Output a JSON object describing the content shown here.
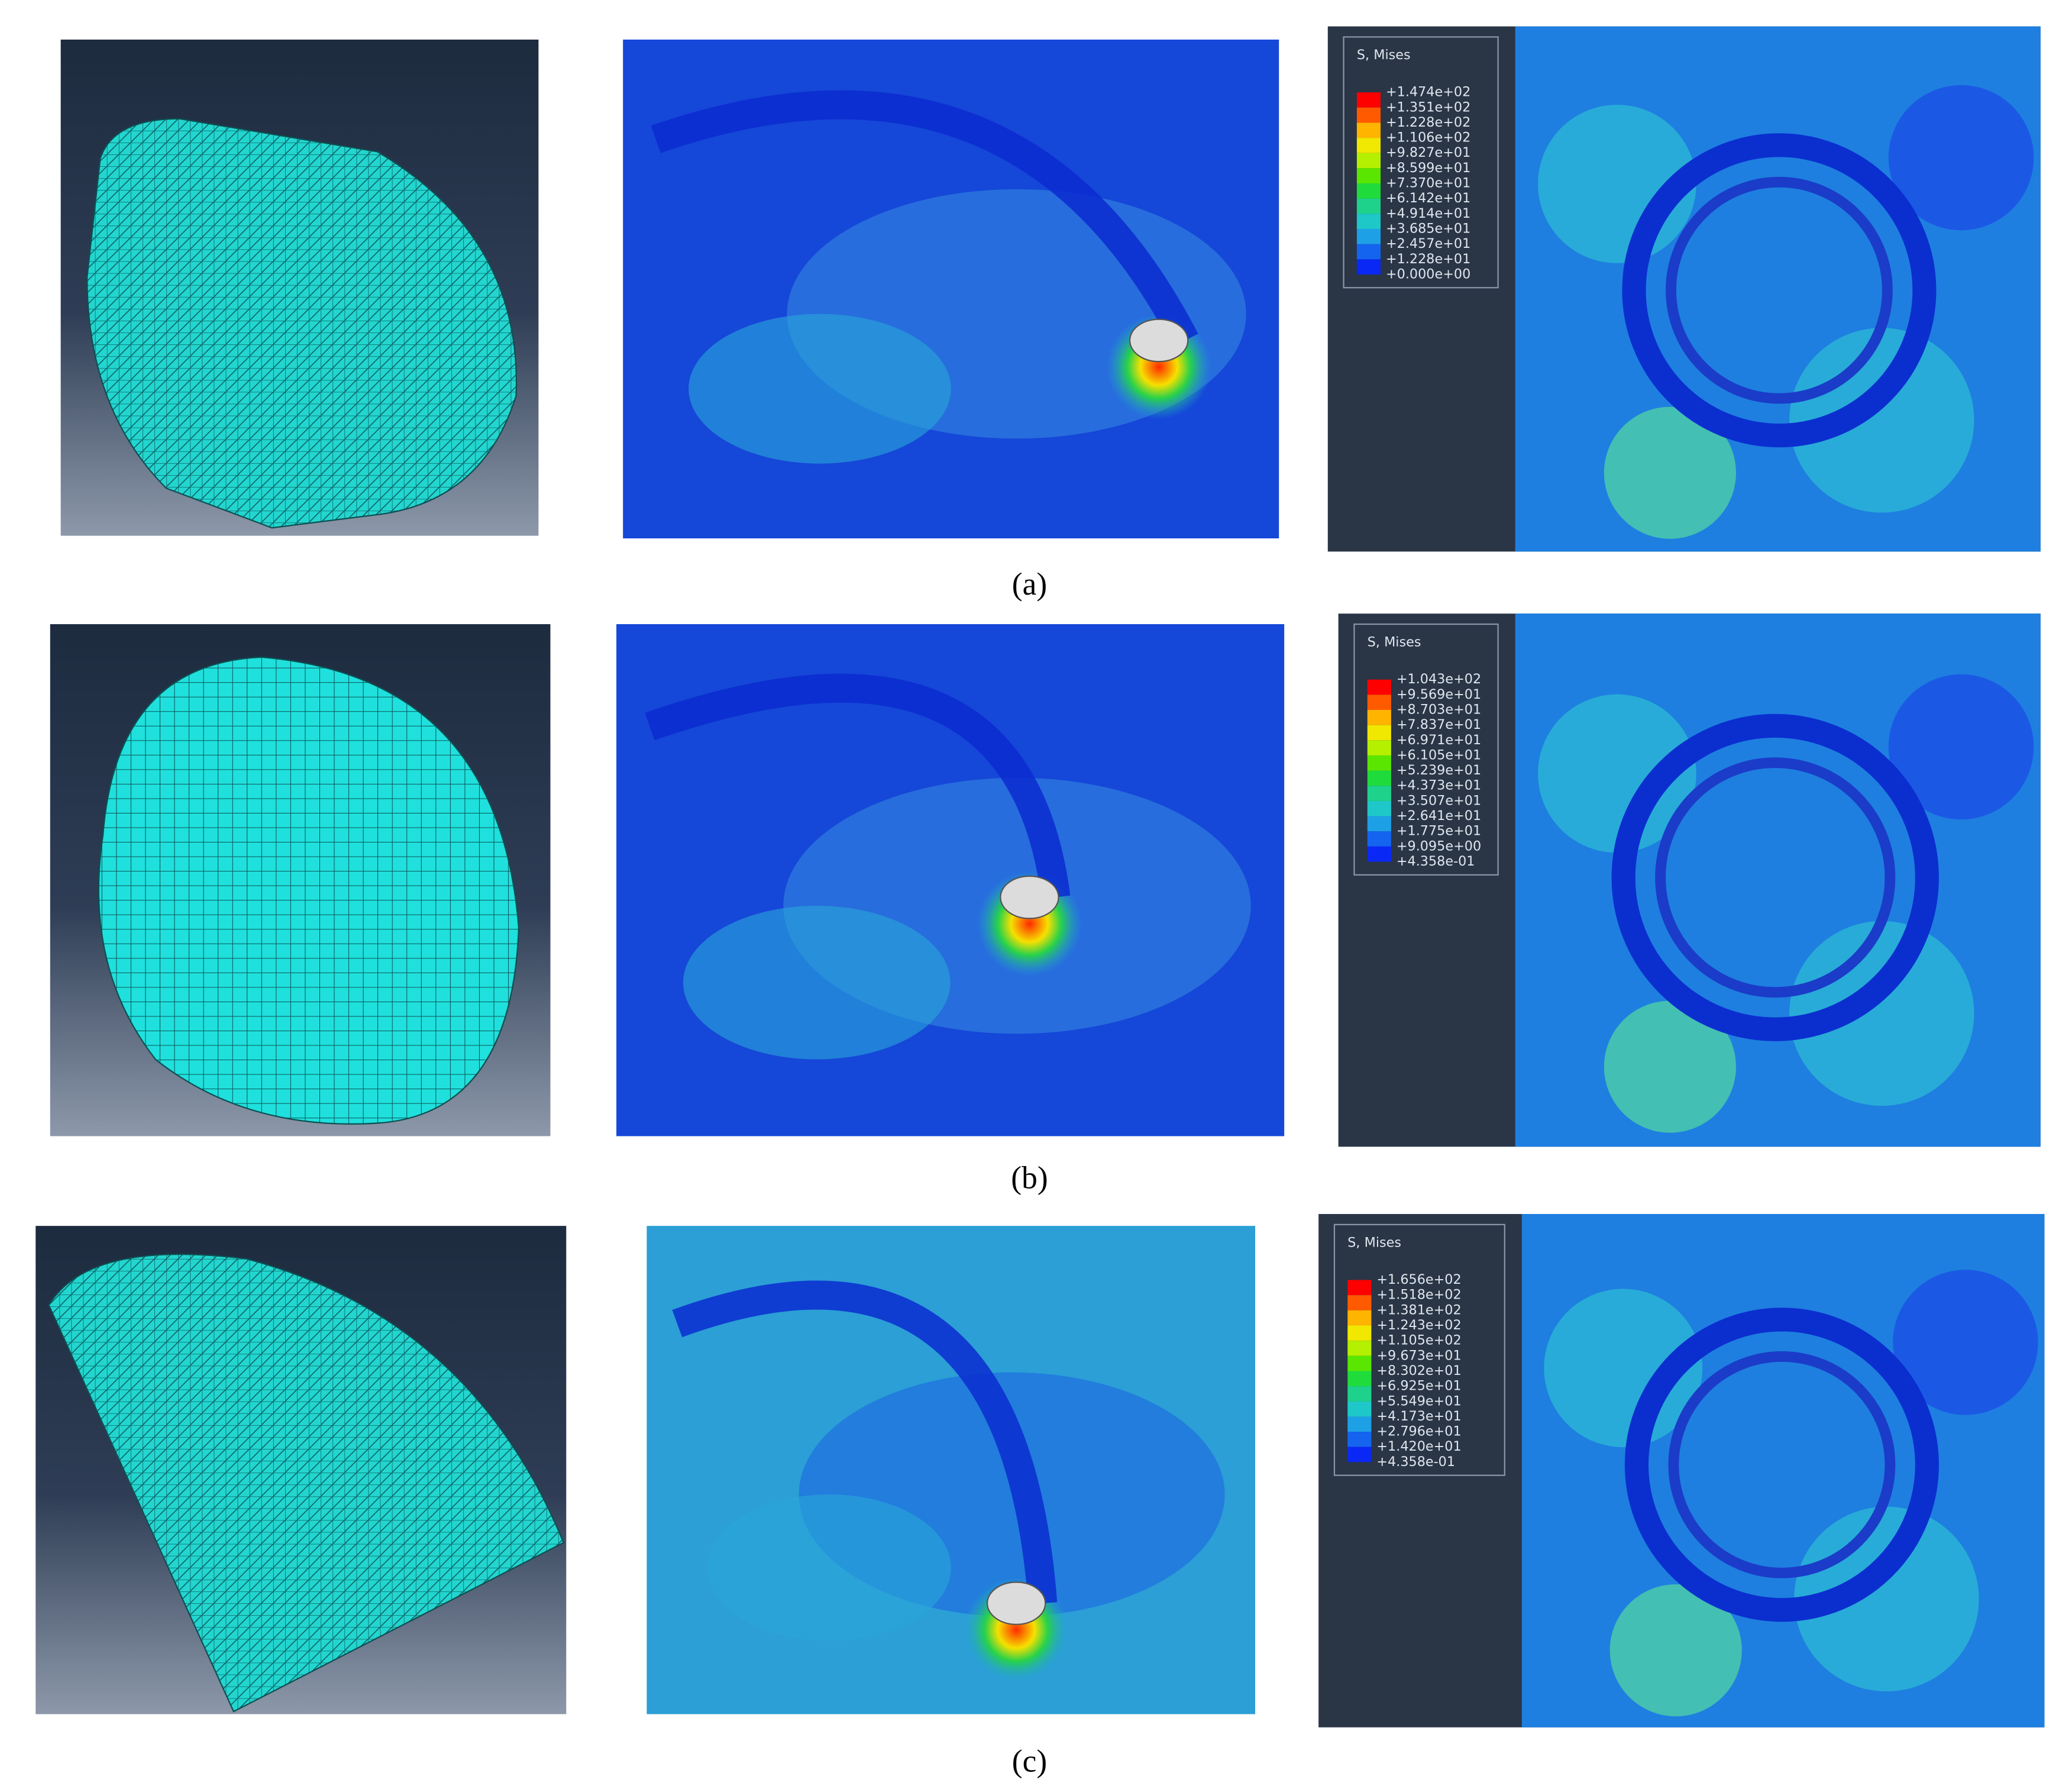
{
  "rows": [
    {
      "label": "(a)",
      "legend": {
        "title": "S, Mises",
        "values": [
          "+1.474e+02",
          "+1.351e+02",
          "+1.228e+02",
          "+1.106e+02",
          "+9.827e+01",
          "+8.599e+01",
          "+7.370e+01",
          "+6.142e+01",
          "+4.914e+01",
          "+3.685e+01",
          "+2.457e+01",
          "+1.228e+01",
          "+0.000e+00"
        ]
      }
    },
    {
      "label": "(b)",
      "legend": {
        "title": "S, Mises",
        "values": [
          "+1.043e+02",
          "+9.569e+01",
          "+8.703e+01",
          "+7.837e+01",
          "+6.971e+01",
          "+6.105e+01",
          "+5.239e+01",
          "+4.373e+01",
          "+3.507e+01",
          "+2.641e+01",
          "+1.775e+01",
          "+9.095e+00",
          "+4.358e-01"
        ]
      }
    },
    {
      "label": "(c)",
      "legend": {
        "title": "S, Mises",
        "values": [
          "+1.656e+02",
          "+1.518e+02",
          "+1.381e+02",
          "+1.243e+02",
          "+1.105e+02",
          "+9.673e+01",
          "+8.302e+01",
          "+6.925e+01",
          "+5.549e+01",
          "+4.173e+01",
          "+2.796e+01",
          "+1.420e+01",
          "+4.358e-01"
        ]
      }
    }
  ]
}
